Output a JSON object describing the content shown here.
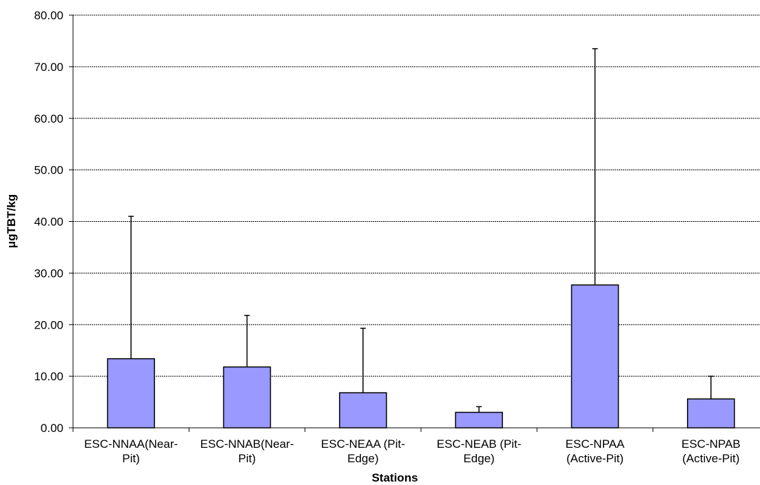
{
  "chart_data": {
    "type": "bar",
    "title": "",
    "xlabel": "Stations",
    "ylabel": "μgTBT/kg",
    "ylim": [
      0,
      80
    ],
    "yticks": [
      0,
      10,
      20,
      30,
      40,
      50,
      60,
      70,
      80
    ],
    "ytick_labels": [
      "0.00",
      "10.00",
      "20.00",
      "30.00",
      "40.00",
      "50.00",
      "60.00",
      "70.00",
      "80.00"
    ],
    "grid": "horizontal",
    "categories": [
      [
        "ESC-NNAA(Near-",
        "Pit)"
      ],
      [
        "ESC-NNAB(Near-",
        "Pit)"
      ],
      [
        "ESC-NEAA (Pit-",
        "Edge)"
      ],
      [
        "ESC-NEAB (Pit-",
        "Edge)"
      ],
      [
        "ESC-NPAA",
        "(Active-Pit)"
      ],
      [
        "ESC-NPAB",
        "(Active-Pit)"
      ]
    ],
    "values": [
      13.4,
      11.8,
      6.8,
      3.0,
      27.7,
      5.6
    ],
    "error_upper": [
      41.0,
      21.8,
      19.3,
      4.1,
      73.5,
      10.0
    ],
    "colors": {
      "bar_fill": "#9999ff",
      "bar_stroke": "#000000",
      "grid": "#000000"
    }
  }
}
